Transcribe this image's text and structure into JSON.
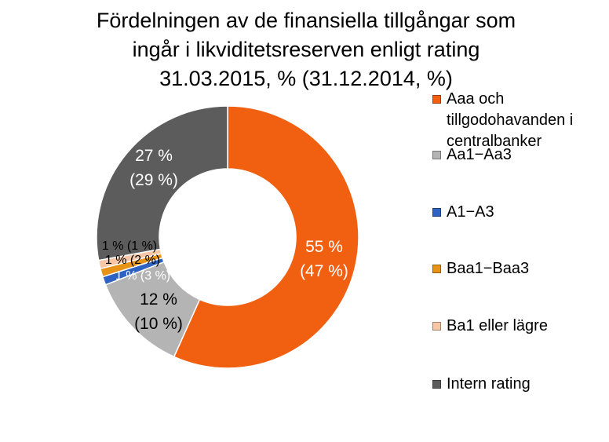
{
  "chart_data": {
    "type": "pie",
    "title_lines": [
      "Fördelningen av de finansiella tillgångar som",
      "ingår i likviditetsreserven enligt rating",
      "31.03.2015, % (31.12.2014, %)"
    ],
    "legend_position": "right",
    "categories": [
      "Aaa och tillgodohavanden i centralbanker",
      "Aa1−Aa3",
      "A1−A3",
      "Baa1−Baa3",
      "Ba1 eller lägre",
      "Intern rating"
    ],
    "series": [
      {
        "name": "31.03.2015",
        "values": [
          55,
          12,
          1,
          1,
          1,
          27
        ]
      },
      {
        "name": "31.12.2014",
        "values": [
          47,
          10,
          3,
          2,
          1,
          29
        ]
      }
    ],
    "colors": [
      "#f06010",
      "#b4b4b4",
      "#2d62c2",
      "#e69318",
      "#f7c6a6",
      "#5c5c5c"
    ],
    "data_labels": [
      [
        "55 %",
        "(47 %)"
      ],
      [
        "12 %",
        "(10 %)"
      ],
      [
        "1 % (3 %)"
      ],
      [
        "1 % (2 %)"
      ],
      [
        "1 % (1 %)"
      ],
      [
        "27 %",
        "(29 %)"
      ]
    ]
  },
  "legend": [
    {
      "label": "Aaa och tillgodohavanden i centralbanker",
      "color": "#f06010"
    },
    {
      "label": "Aa1−Aa3",
      "color": "#b4b4b4"
    },
    {
      "label": "A1−A3",
      "color": "#2d62c2"
    },
    {
      "label": "Baa1−Baa3",
      "color": "#e69318"
    },
    {
      "label": "Ba1 eller lägre",
      "color": "#f7c6a6"
    },
    {
      "label": "Intern rating",
      "color": "#5c5c5c"
    }
  ]
}
